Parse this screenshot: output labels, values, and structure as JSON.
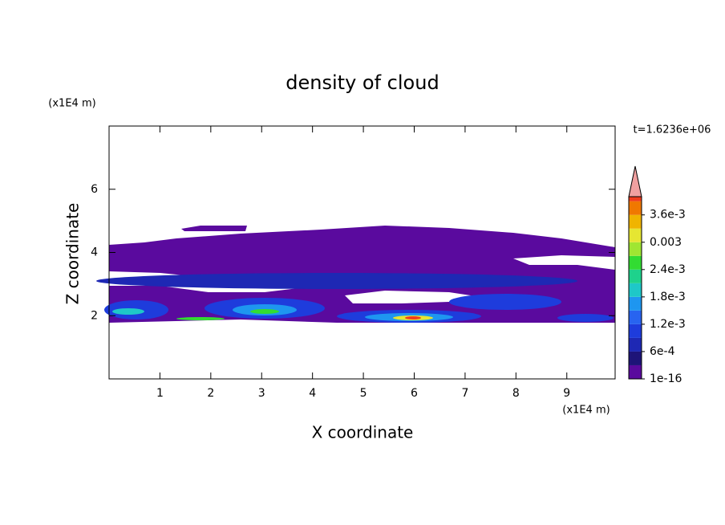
{
  "chart_data": {
    "type": "contour",
    "title": "density of cloud",
    "x_label": "X coordinate",
    "y_label": "Z coordinate",
    "x_unit": "(x1E4 m)",
    "y_unit": "(x1E4 m)",
    "time_label": "t=1.6236e+06",
    "xlim": [
      0,
      9.95
    ],
    "xticks": [
      1,
      2,
      3,
      4,
      5,
      6,
      7,
      8,
      9
    ],
    "ylim": [
      0,
      8
    ],
    "yticks": [
      2,
      4,
      6
    ],
    "colorbar": {
      "clim": [
        0,
        0.004
      ],
      "levels": [
        0,
        0.0003,
        0.0006,
        0.0009,
        0.0012,
        0.0015,
        0.0018,
        0.0021,
        0.0024,
        0.0027,
        0.003,
        0.0033,
        0.0036,
        0.0039
      ],
      "colors": [
        "#5a0a9e",
        "#1e1478",
        "#1e28b4",
        "#1e3cdc",
        "#2864f0",
        "#1e96f0",
        "#1ec8c8",
        "#1ed28c",
        "#32dc32",
        "#a0e632",
        "#e6e632",
        "#f0b400",
        "#f07800",
        "#f03c1e"
      ],
      "extend_color": "#f0a0a0",
      "ticks": [
        {
          "value": 1e-16,
          "label": "1e-16"
        },
        {
          "value": 0.0006,
          "label": "6e-4"
        },
        {
          "value": 0.0012,
          "label": "1.2e-3"
        },
        {
          "value": 0.0018,
          "label": "1.8e-3"
        },
        {
          "value": 0.0024,
          "label": "2.4e-3"
        },
        {
          "value": 0.003,
          "label": "0.003"
        },
        {
          "value": 0.0036,
          "label": "3.6e-3"
        }
      ]
    }
  }
}
